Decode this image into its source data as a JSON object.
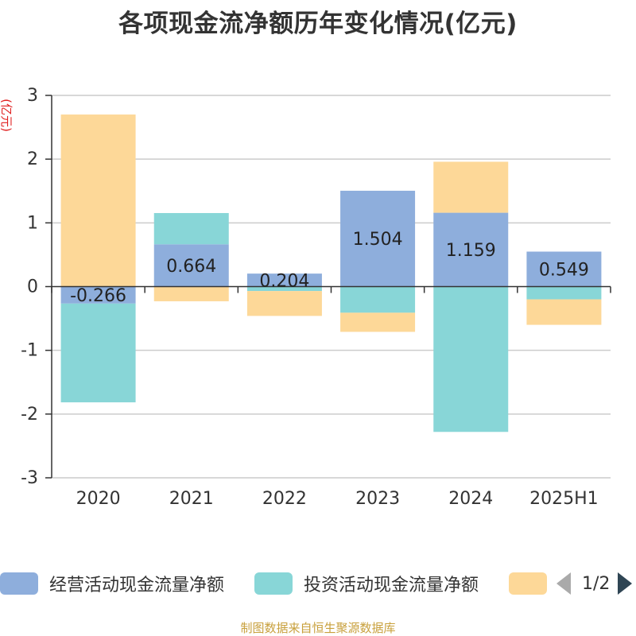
{
  "title": "各项现金流净额历年变化情况(亿元)",
  "y_unit": "(亿元)",
  "source": "制图数据来自恒生聚源数据库",
  "legend": {
    "items": [
      {
        "label": "经营活动现金流量净额",
        "color": "#8eaedc"
      },
      {
        "label": "投资活动现金流量净额",
        "color": "#88d6d7"
      },
      {
        "label": "",
        "color": "#fdd898"
      }
    ],
    "page": "1/2"
  },
  "colors": {
    "operating": "#8eaedc",
    "investing": "#88d6d7",
    "financing": "#fdd898",
    "axis": "#333333",
    "grid": "#cccccc",
    "unit": "#e02020"
  },
  "chart_data": {
    "type": "bar",
    "stacked": true,
    "categories": [
      "2020",
      "2021",
      "2022",
      "2023",
      "2024",
      "2025H1"
    ],
    "ylim": [
      -3,
      3
    ],
    "yticks": [
      3,
      2,
      1,
      0,
      -1,
      -2,
      -3
    ],
    "ylabel": "(亿元)",
    "grid": true,
    "legend_position": "bottom",
    "series": [
      {
        "name": "经营活动现金流量净额",
        "values": [
          -0.266,
          0.664,
          0.204,
          1.504,
          1.159,
          0.549
        ],
        "labels": [
          "-0.266",
          "0.664",
          "0.204",
          "1.504",
          "1.159",
          "0.549"
        ]
      },
      {
        "name": "投资活动现金流量净额",
        "values": [
          -1.55,
          0.49,
          -0.07,
          -0.41,
          -2.28,
          -0.2
        ]
      },
      {
        "values": [
          2.7,
          -0.23,
          -0.39,
          -0.3,
          0.8,
          -0.4
        ]
      }
    ]
  }
}
